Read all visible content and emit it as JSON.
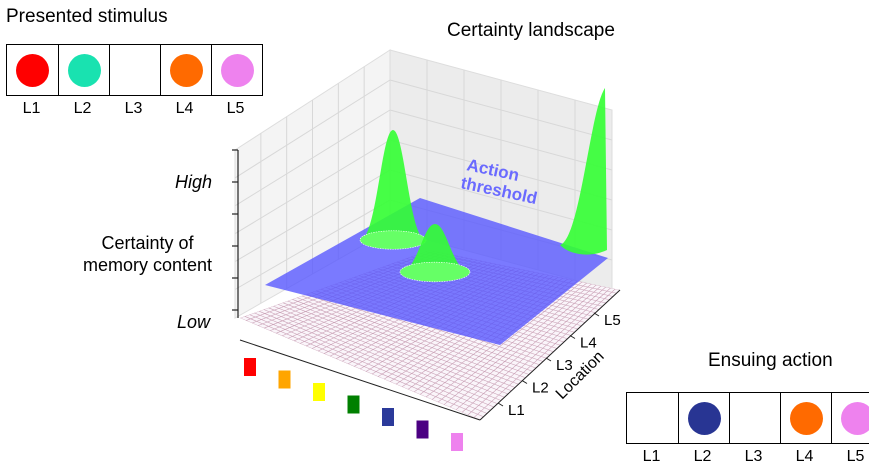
{
  "presented": {
    "title": "Presented stimulus",
    "cells": [
      {
        "label": "L1",
        "color": "#ff0000",
        "filled": true
      },
      {
        "label": "L2",
        "color": "#19e2b0",
        "filled": true
      },
      {
        "label": "L3",
        "color": "",
        "filled": false
      },
      {
        "label": "L4",
        "color": "#ff6a00",
        "filled": true
      },
      {
        "label": "L5",
        "color": "#ee82ee",
        "filled": true
      }
    ]
  },
  "landscape": {
    "title": "Certainty landscape",
    "threshold_label_1": "Action",
    "threshold_label_2": "threshold",
    "y_label_1": "Certainty of",
    "y_label_2": "memory content",
    "y_high": "High",
    "y_low": "Low",
    "depth_axis_label": "Location",
    "depth_ticks": [
      "L1",
      "L2",
      "L3",
      "L4",
      "L5"
    ],
    "color_axis": [
      "#ff0000",
      "#ffa500",
      "#ffff00",
      "#008000",
      "#2b3a9a",
      "#4b0082",
      "#ee82ee"
    ],
    "surface_color": "#5555ff",
    "peak_color": "#33ff33",
    "mesh_color": "#c9a0b5"
  },
  "ensuing": {
    "title": "Ensuing action",
    "cells": [
      {
        "label": "L1",
        "color": "",
        "filled": false
      },
      {
        "label": "L2",
        "color": "#283593",
        "filled": true
      },
      {
        "label": "L3",
        "color": "",
        "filled": false
      },
      {
        "label": "L4",
        "color": "#ff6a00",
        "filled": true
      },
      {
        "label": "L5",
        "color": "#ee82ee",
        "filled": true
      }
    ]
  }
}
